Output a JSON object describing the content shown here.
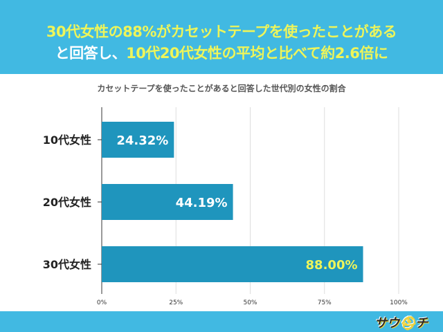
{
  "header": {
    "line1": "30代女性の88%がカセットテープを使ったことがある",
    "line2_white": "と回答し、",
    "line2_yellow": "10代20代女性の平均と比べて約2.6倍に"
  },
  "colors": {
    "band": "#41b9e2",
    "bar": "#1f95bd",
    "highlight": "#eef55a"
  },
  "footer": {
    "logo_text": "サウチ"
  },
  "chart_data": {
    "type": "bar",
    "orientation": "horizontal",
    "title": "カセットテープを使ったことがあると回答した世代別の女性の割合",
    "categories": [
      "10代女性",
      "20代女性",
      "30代女性"
    ],
    "values": [
      24.32,
      44.19,
      88.0
    ],
    "data_labels": [
      "24.32%",
      "44.19%",
      "88.00%"
    ],
    "xlim": [
      0,
      100
    ],
    "x_ticks": [
      "0%",
      "25%",
      "50%",
      "75%",
      "100%"
    ],
    "grid": true
  }
}
